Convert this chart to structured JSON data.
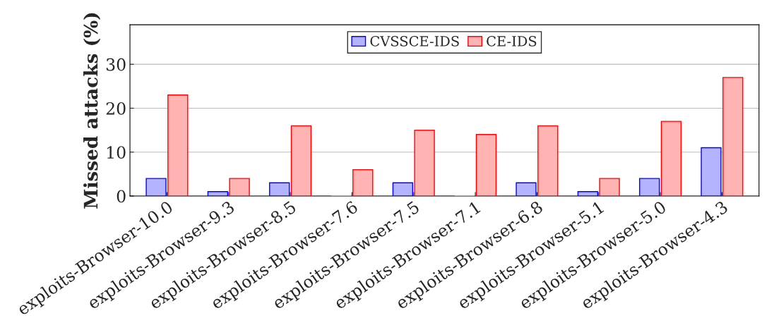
{
  "chart_data": {
    "type": "bar",
    "ylabel": "Missed attacks (%)",
    "categories": [
      "exploits-Browser-10.0",
      "exploits-Browser-9.3",
      "exploits-Browser-8.5",
      "exploits-Browser-7.6",
      "exploits-Browser-7.5",
      "exploits-Browser-7.1",
      "exploits-Browser-6.8",
      "exploits-Browser-5.1",
      "exploits-Browser-5.0",
      "exploits-Browser-4.3"
    ],
    "series": [
      {
        "name": "CVSSCE-IDS",
        "color": "#b3b3ff",
        "values": [
          4,
          1,
          3,
          0,
          3,
          0,
          3,
          1,
          4,
          11
        ]
      },
      {
        "name": "CE-IDS",
        "color": "#ffb3b3",
        "values": [
          23,
          4,
          16,
          6,
          15,
          14,
          16,
          4,
          17,
          27
        ]
      }
    ],
    "ylim": [
      0,
      39
    ],
    "yticks": [
      0,
      10,
      20,
      30
    ],
    "grid": "y",
    "legend": "top"
  }
}
